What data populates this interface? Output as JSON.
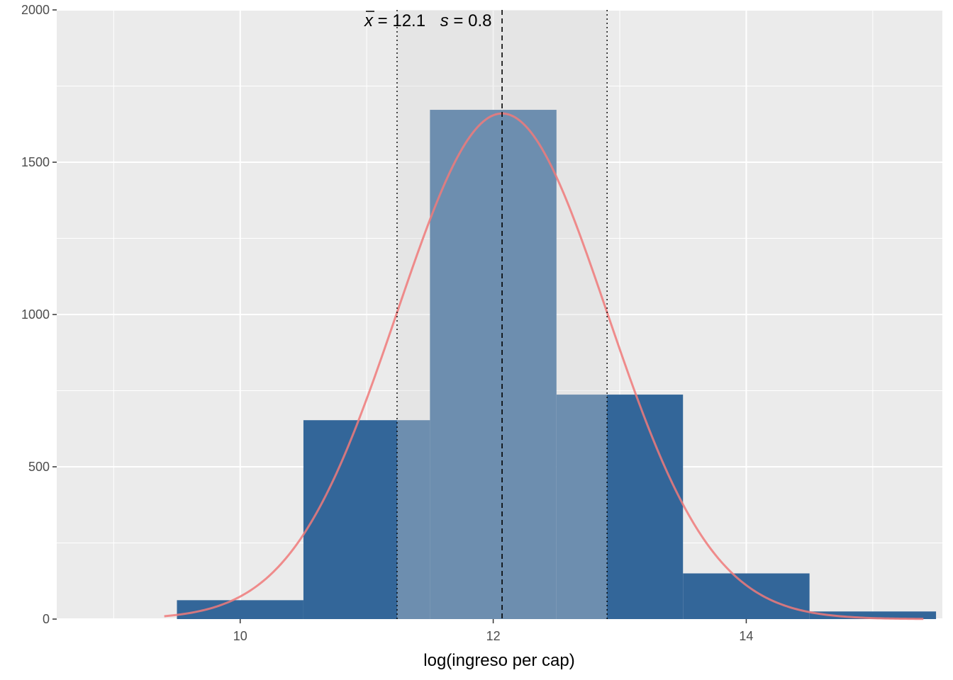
{
  "chart_data": {
    "type": "bar",
    "subtype": "histogram",
    "title": "",
    "xlabel": "log(ingreso per cap)",
    "ylabel": "",
    "xlim": [
      8.55,
      15.55
    ],
    "ylim": [
      0,
      2000
    ],
    "x_ticks": [
      10,
      12,
      14
    ],
    "x_tick_labels": [
      "10",
      "12",
      "14"
    ],
    "x_minor_ticks": [
      9,
      11,
      13,
      15
    ],
    "y_ticks": [
      0,
      500,
      1000,
      1500,
      2000
    ],
    "y_tick_labels": [
      "0",
      "500",
      "1000",
      "1500",
      "2000"
    ],
    "grid": true,
    "bins": [
      {
        "x0": 9.5,
        "x1": 10.5,
        "count": 62
      },
      {
        "x0": 10.5,
        "x1": 11.5,
        "count": 653
      },
      {
        "x0": 11.5,
        "x1": 12.5,
        "count": 1672
      },
      {
        "x0": 12.5,
        "x1": 13.5,
        "count": 737
      },
      {
        "x0": 13.5,
        "x1": 14.5,
        "count": 150
      },
      {
        "x0": 14.5,
        "x1": 15.5,
        "count": 25
      }
    ],
    "normal_curve": {
      "mean": 12.07,
      "sd": 0.83,
      "peak": 1660,
      "x_range": [
        9.4,
        15.4
      ],
      "color": "#f07a7a"
    },
    "mean_line": {
      "x": 12.07,
      "style": "dashed"
    },
    "sd_band": {
      "x0": 11.24,
      "x1": 12.9,
      "style": "dotted"
    },
    "annotation": {
      "xbar_symbol": "x",
      "eq1": " = 12.1",
      "s_symbol": "s",
      "eq2": " = 0.8"
    },
    "colors": {
      "panel": "#ebebeb",
      "grid": "#ffffff",
      "bar": "#336699",
      "band": "#d9d9d9"
    }
  }
}
